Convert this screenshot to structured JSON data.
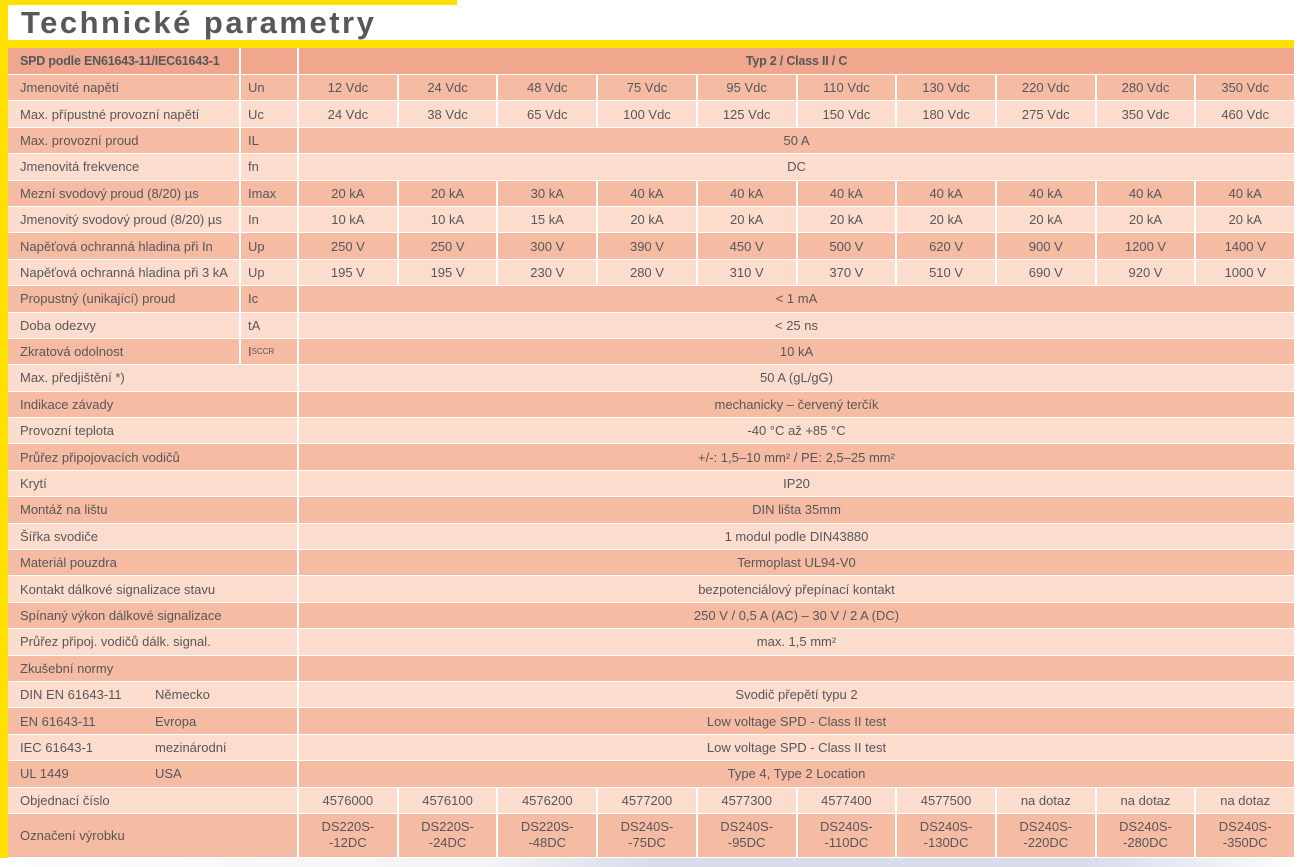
{
  "title": "Technické parametry",
  "colors": {
    "accent_yellow": "#ffe000",
    "header_row": "#f0a78e",
    "row_medium": "#f6bba3",
    "row_light": "#fcdccd",
    "text": "#57575a"
  },
  "table": {
    "header": {
      "left": "SPD podle EN61643-11/IEC61643-1",
      "right": "Typ 2 / Class II / C"
    },
    "rows": [
      {
        "type": "values",
        "label": "Jmenovité napětí",
        "symbol": "Un",
        "values": [
          "12 Vdc",
          "24 Vdc",
          "48 Vdc",
          "75 Vdc",
          "95 Vdc",
          "110 Vdc",
          "130 Vdc",
          "220 Vdc",
          "280 Vdc",
          "350 Vdc"
        ]
      },
      {
        "type": "values",
        "label": "Max. přípustné provozní napětí",
        "symbol": "Uc",
        "values": [
          "24 Vdc",
          "38 Vdc",
          "65 Vdc",
          "100 Vdc",
          "125 Vdc",
          "150 Vdc",
          "180 Vdc",
          "275 Vdc",
          "350 Vdc",
          "460 Vdc"
        ]
      },
      {
        "type": "span",
        "label": "Max. provozní proud",
        "symbol": "IL",
        "value": "50 A"
      },
      {
        "type": "span",
        "label": "Jmenovitá frekvence",
        "symbol": "fn",
        "value": "DC"
      },
      {
        "type": "values",
        "label": "Mezní svodový proud (8/20) µs",
        "symbol": "Imax",
        "values": [
          "20 kA",
          "20 kA",
          "30 kA",
          "40 kA",
          "40 kA",
          "40 kA",
          "40 kA",
          "40 kA",
          "40 kA",
          "40 kA"
        ]
      },
      {
        "type": "values",
        "label": "Jmenovitý svodový proud (8/20) µs",
        "symbol": "In",
        "values": [
          "10 kA",
          "10 kA",
          "15 kA",
          "20 kA",
          "20 kA",
          "20 kA",
          "20 kA",
          "20 kA",
          "20 kA",
          "20 kA"
        ]
      },
      {
        "type": "values",
        "label": "Napěťová ochranná hladina při In",
        "symbol": "Up",
        "values": [
          "250 V",
          "250 V",
          "300 V",
          "390 V",
          "450 V",
          "500 V",
          "620 V",
          "900 V",
          "1200 V",
          "1400 V"
        ]
      },
      {
        "type": "values",
        "label": "Napěťová ochranná hladina při 3 kA",
        "symbol": "Up",
        "values": [
          "195 V",
          "195 V",
          "230 V",
          "280 V",
          "310 V",
          "370 V",
          "510 V",
          "690 V",
          "920 V",
          "1000 V"
        ]
      },
      {
        "type": "span",
        "label": "Propustný (unikající) proud",
        "symbol": "Ic",
        "value": "< 1 mA"
      },
      {
        "type": "span",
        "label": "Doba odezvy",
        "symbol": "tA",
        "value": "< 25 ns"
      },
      {
        "type": "span",
        "label": "Zkratová odolnost",
        "symbol": "I",
        "symbol_sub": "SCCR",
        "value": "10 kA"
      },
      {
        "type": "span2",
        "label": "Max. předjištění *)",
        "value": "50 A (gL/gG)"
      },
      {
        "type": "span2",
        "label": "Indikace závady",
        "value": "mechanicky – červený terčík"
      },
      {
        "type": "span2",
        "label": "Provozní teplota",
        "value": "-40 °C až +85 °C"
      },
      {
        "type": "span2",
        "label": "Průřez připojovacích vodičů",
        "value": "+/-: 1,5–10 mm² / PE: 2,5–25 mm²"
      },
      {
        "type": "span2",
        "label": "Krytí",
        "value": "IP20"
      },
      {
        "type": "span2",
        "label": "Montáž na lištu",
        "value": "DIN lišta 35mm"
      },
      {
        "type": "span2",
        "label": "Šířka svodiče",
        "value": "1 modul podle DIN43880"
      },
      {
        "type": "span2",
        "label": "Materiál pouzdra",
        "value": "Termoplast UL94-V0"
      },
      {
        "type": "span2",
        "label": "Kontakt dálkové signalizace stavu",
        "value": "bezpotenciálový přepínací kontakt"
      },
      {
        "type": "span2",
        "label": "Spínaný výkon dálkové signalizace",
        "value": "250 V / 0,5 A (AC) – 30 V / 2 A (DC)"
      },
      {
        "type": "span2",
        "label": "Průřez připoj. vodičů dálk. signal.",
        "value": "max. 1,5 mm²"
      },
      {
        "type": "span2",
        "label": "Zkušební normy",
        "value": ""
      },
      {
        "type": "norm",
        "label": "DIN EN 61643-11",
        "country": "Německo",
        "value": "Svodič přepětí typu 2"
      },
      {
        "type": "norm",
        "label": "EN 61643-11",
        "country": "Evropa",
        "value": "Low voltage SPD - Class II test"
      },
      {
        "type": "norm",
        "label": "IEC 61643-1",
        "country": "mezinárodní",
        "value": "Low voltage SPD - Class II test"
      },
      {
        "type": "norm",
        "label": "UL 1449",
        "country": "USA",
        "value": "Type 4, Type 2 Location"
      },
      {
        "type": "values2",
        "label": "Objednací číslo",
        "values": [
          "4576000",
          "4576100",
          "4576200",
          "4577200",
          "4577300",
          "4577400",
          "4577500",
          "na dotaz",
          "na dotaz",
          "na dotaz"
        ]
      },
      {
        "type": "values2",
        "label": "Označení výrobku",
        "tall": true,
        "values": [
          "DS220S-\n-12DC",
          "DS220S-\n-24DC",
          "DS220S-\n-48DC",
          "DS240S-\n-75DC",
          "DS240S-\n-95DC",
          "DS240S-\n-110DC",
          "DS240S-\n-130DC",
          "DS240S-\n-220DC",
          "DS240S-\n-280DC",
          "DS240S-\n-350DC"
        ]
      }
    ]
  }
}
